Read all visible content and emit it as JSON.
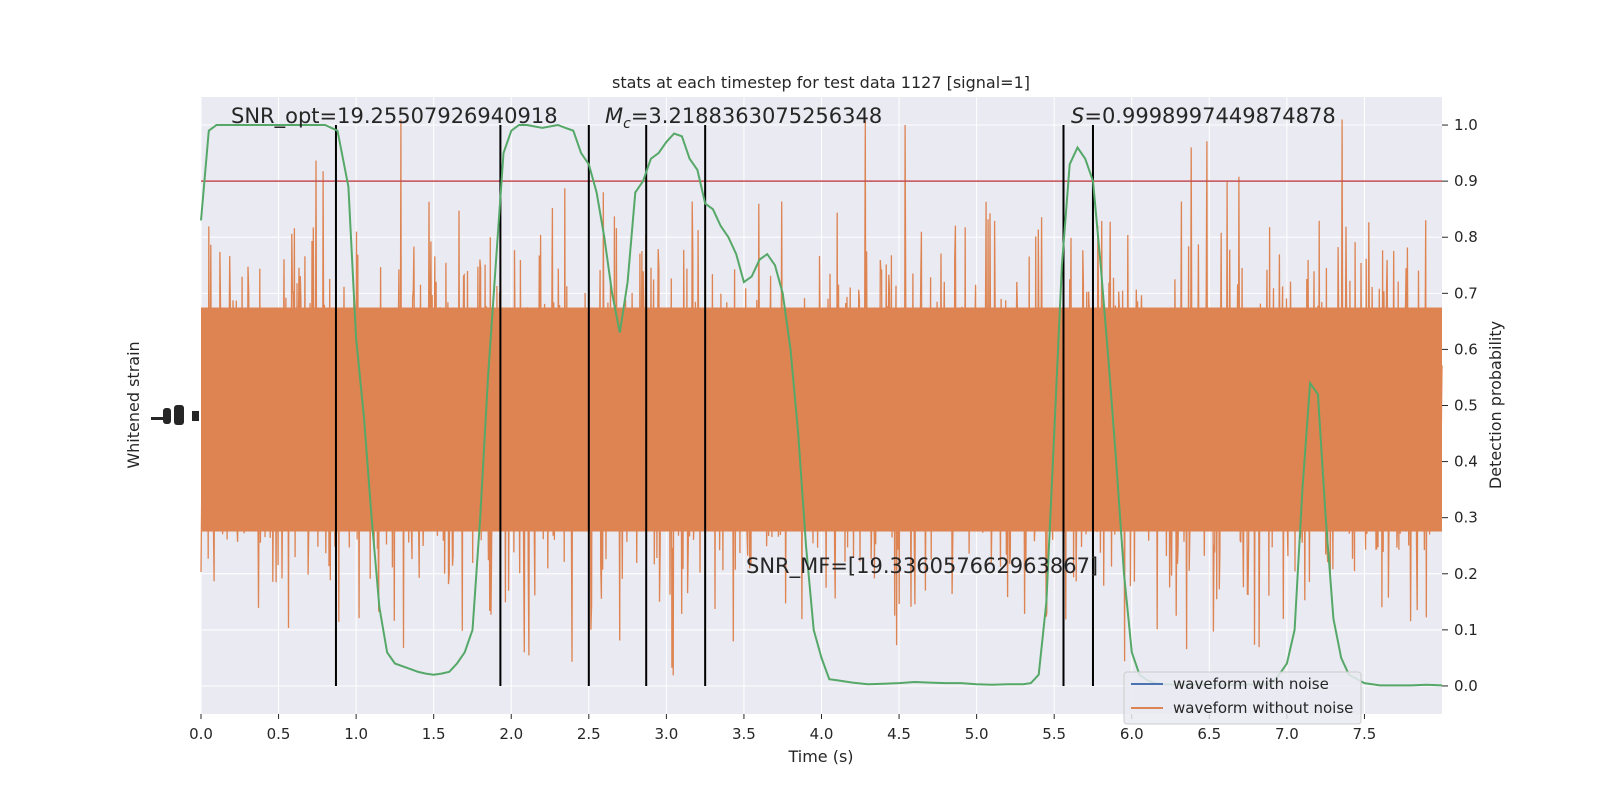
{
  "chart_data": {
    "type": "line",
    "title": "stats at each timestep for test data 1127 [signal=1]",
    "xlabel": "Time (s)",
    "ylabel_left": "Whitened strain",
    "ylabel_right": "Detection probability",
    "xlim": [
      0,
      8
    ],
    "ylim_right": [
      -0.05,
      1.05
    ],
    "x_ticks": [
      0,
      0.5,
      1,
      1.5,
      2,
      2.5,
      3,
      3.5,
      4,
      4.5,
      5,
      5.5,
      6,
      6.5,
      7,
      7.5
    ],
    "x_tick_labels": [
      "0.0",
      "0.5",
      "1.0",
      "1.5",
      "2.0",
      "2.5",
      "3.0",
      "3.5",
      "4.0",
      "4.5",
      "5.0",
      "5.5",
      "6.0",
      "6.5",
      "7.0",
      "7.5"
    ],
    "y_ticks_right": [
      0,
      0.1,
      0.2,
      0.3,
      0.4,
      0.5,
      0.6,
      0.7,
      0.8,
      0.9,
      1.0
    ],
    "y_tick_labels_right": [
      "0.0",
      "0.1",
      "0.2",
      "0.3",
      "0.4",
      "0.5",
      "0.6",
      "0.7",
      "0.8",
      "0.9",
      "1.0"
    ],
    "grid": true,
    "threshold": 0.9,
    "vertical_lines_x": [
      0.87,
      1.93,
      2.5,
      2.87,
      3.25,
      5.56,
      5.75
    ],
    "annotations": {
      "snr_opt": "SNR_opt=19.25507926940918",
      "mc_symbol": "M",
      "mc_sub": "c",
      "mc_value": "=3.2188363075256348",
      "s_symbol": "S",
      "s_value": "=0.9998997449874878",
      "snr_mf": "SNR_MF=[19.336057662963867]"
    },
    "series": [
      {
        "name": "waveform with noise",
        "color": "#4c72b0"
      },
      {
        "name": "waveform without noise",
        "color": "#dd8452"
      },
      {
        "color": "#55a868",
        "x": [
          0.0,
          0.05,
          0.1,
          0.2,
          0.3,
          0.4,
          0.5,
          0.6,
          0.7,
          0.8,
          0.88,
          0.95,
          1.0,
          1.05,
          1.1,
          1.15,
          1.2,
          1.25,
          1.3,
          1.35,
          1.4,
          1.45,
          1.5,
          1.55,
          1.6,
          1.65,
          1.7,
          1.75,
          1.8,
          1.85,
          1.9,
          1.95,
          2.0,
          2.05,
          2.1,
          2.2,
          2.3,
          2.35,
          2.4,
          2.45,
          2.5,
          2.55,
          2.6,
          2.65,
          2.7,
          2.75,
          2.8,
          2.85,
          2.9,
          2.95,
          3.0,
          3.05,
          3.1,
          3.15,
          3.2,
          3.25,
          3.3,
          3.35,
          3.4,
          3.45,
          3.5,
          3.55,
          3.6,
          3.65,
          3.7,
          3.75,
          3.8,
          3.85,
          3.9,
          3.95,
          4.0,
          4.05,
          4.1,
          4.2,
          4.3,
          4.4,
          4.5,
          4.6,
          4.7,
          4.8,
          4.9,
          5.0,
          5.1,
          5.2,
          5.3,
          5.35,
          5.4,
          5.45,
          5.5,
          5.55,
          5.6,
          5.65,
          5.7,
          5.75,
          5.8,
          5.85,
          5.9,
          5.95,
          6.0,
          6.05,
          6.1,
          6.15,
          6.2,
          6.3,
          6.5,
          6.7,
          6.9,
          6.95,
          7.0,
          7.05,
          7.1,
          7.15,
          7.2,
          7.25,
          7.3,
          7.35,
          7.4,
          7.5,
          7.6,
          7.7,
          7.8,
          7.9,
          8.0
        ],
        "y": [
          0.83,
          0.99,
          1.0,
          1.0,
          1.0,
          1.0,
          1.0,
          1.0,
          1.0,
          1.0,
          0.99,
          0.89,
          0.62,
          0.48,
          0.3,
          0.14,
          0.06,
          0.04,
          0.035,
          0.03,
          0.025,
          0.022,
          0.02,
          0.022,
          0.025,
          0.04,
          0.06,
          0.1,
          0.3,
          0.55,
          0.75,
          0.95,
          0.99,
          1.0,
          1.0,
          0.995,
          1.0,
          0.995,
          0.99,
          0.95,
          0.93,
          0.88,
          0.8,
          0.7,
          0.63,
          0.72,
          0.88,
          0.9,
          0.94,
          0.95,
          0.97,
          0.985,
          0.98,
          0.94,
          0.92,
          0.86,
          0.85,
          0.82,
          0.8,
          0.77,
          0.72,
          0.73,
          0.76,
          0.77,
          0.75,
          0.7,
          0.6,
          0.45,
          0.25,
          0.1,
          0.05,
          0.012,
          0.01,
          0.006,
          0.003,
          0.004,
          0.005,
          0.007,
          0.006,
          0.005,
          0.005,
          0.003,
          0.002,
          0.003,
          0.003,
          0.005,
          0.02,
          0.15,
          0.45,
          0.75,
          0.93,
          0.96,
          0.94,
          0.9,
          0.75,
          0.58,
          0.4,
          0.2,
          0.06,
          0.02,
          0.01,
          0.005,
          0.003,
          0.002,
          0.002,
          0.002,
          0.003,
          0.02,
          0.04,
          0.1,
          0.35,
          0.54,
          0.52,
          0.3,
          0.12,
          0.05,
          0.02,
          0.005,
          0.001,
          0.001,
          0.001,
          0.002,
          0.001
        ]
      }
    ]
  }
}
